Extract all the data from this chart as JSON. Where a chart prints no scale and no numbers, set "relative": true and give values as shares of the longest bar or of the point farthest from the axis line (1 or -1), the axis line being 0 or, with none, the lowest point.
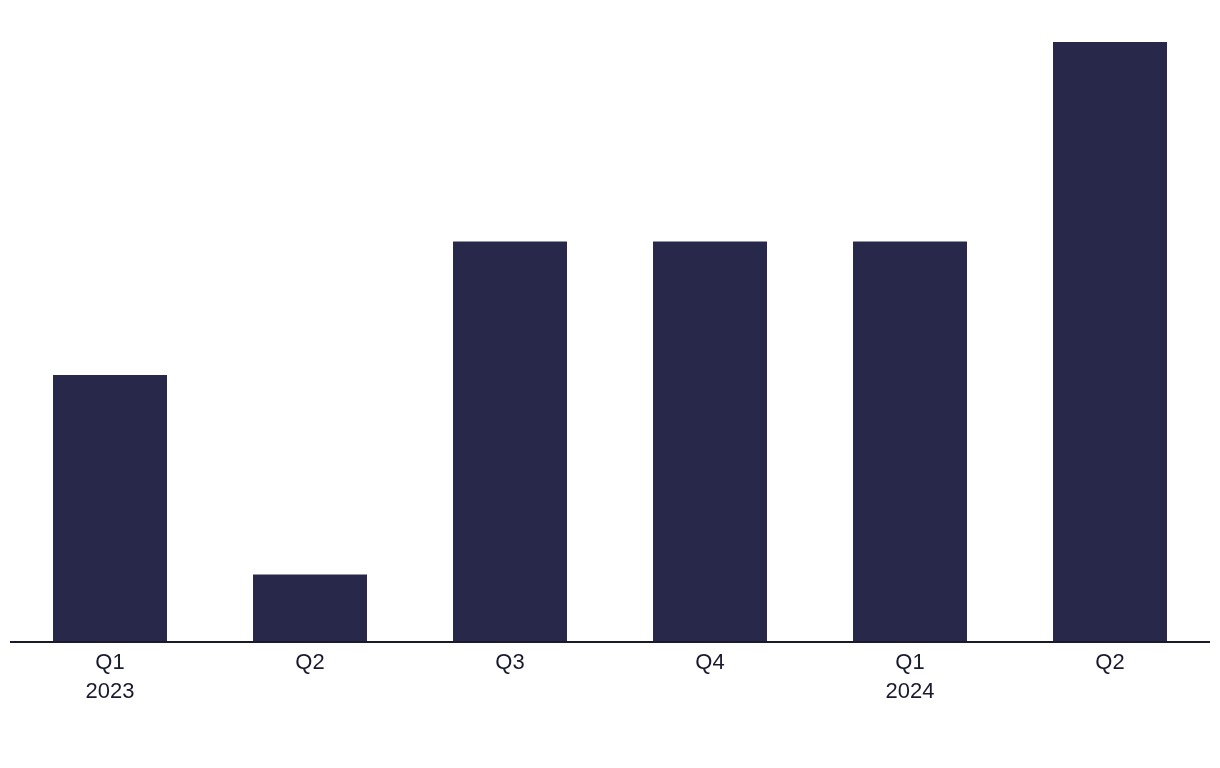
{
  "chart_data": {
    "type": "bar",
    "relative": true,
    "categories": [
      "Q1\n2023",
      "Q2",
      "Q3",
      "Q4",
      "Q1\n2024",
      "Q2"
    ],
    "values": [
      0.444,
      0.111,
      0.667,
      0.667,
      0.667,
      1
    ],
    "color": "#28284a",
    "legend": false
  }
}
